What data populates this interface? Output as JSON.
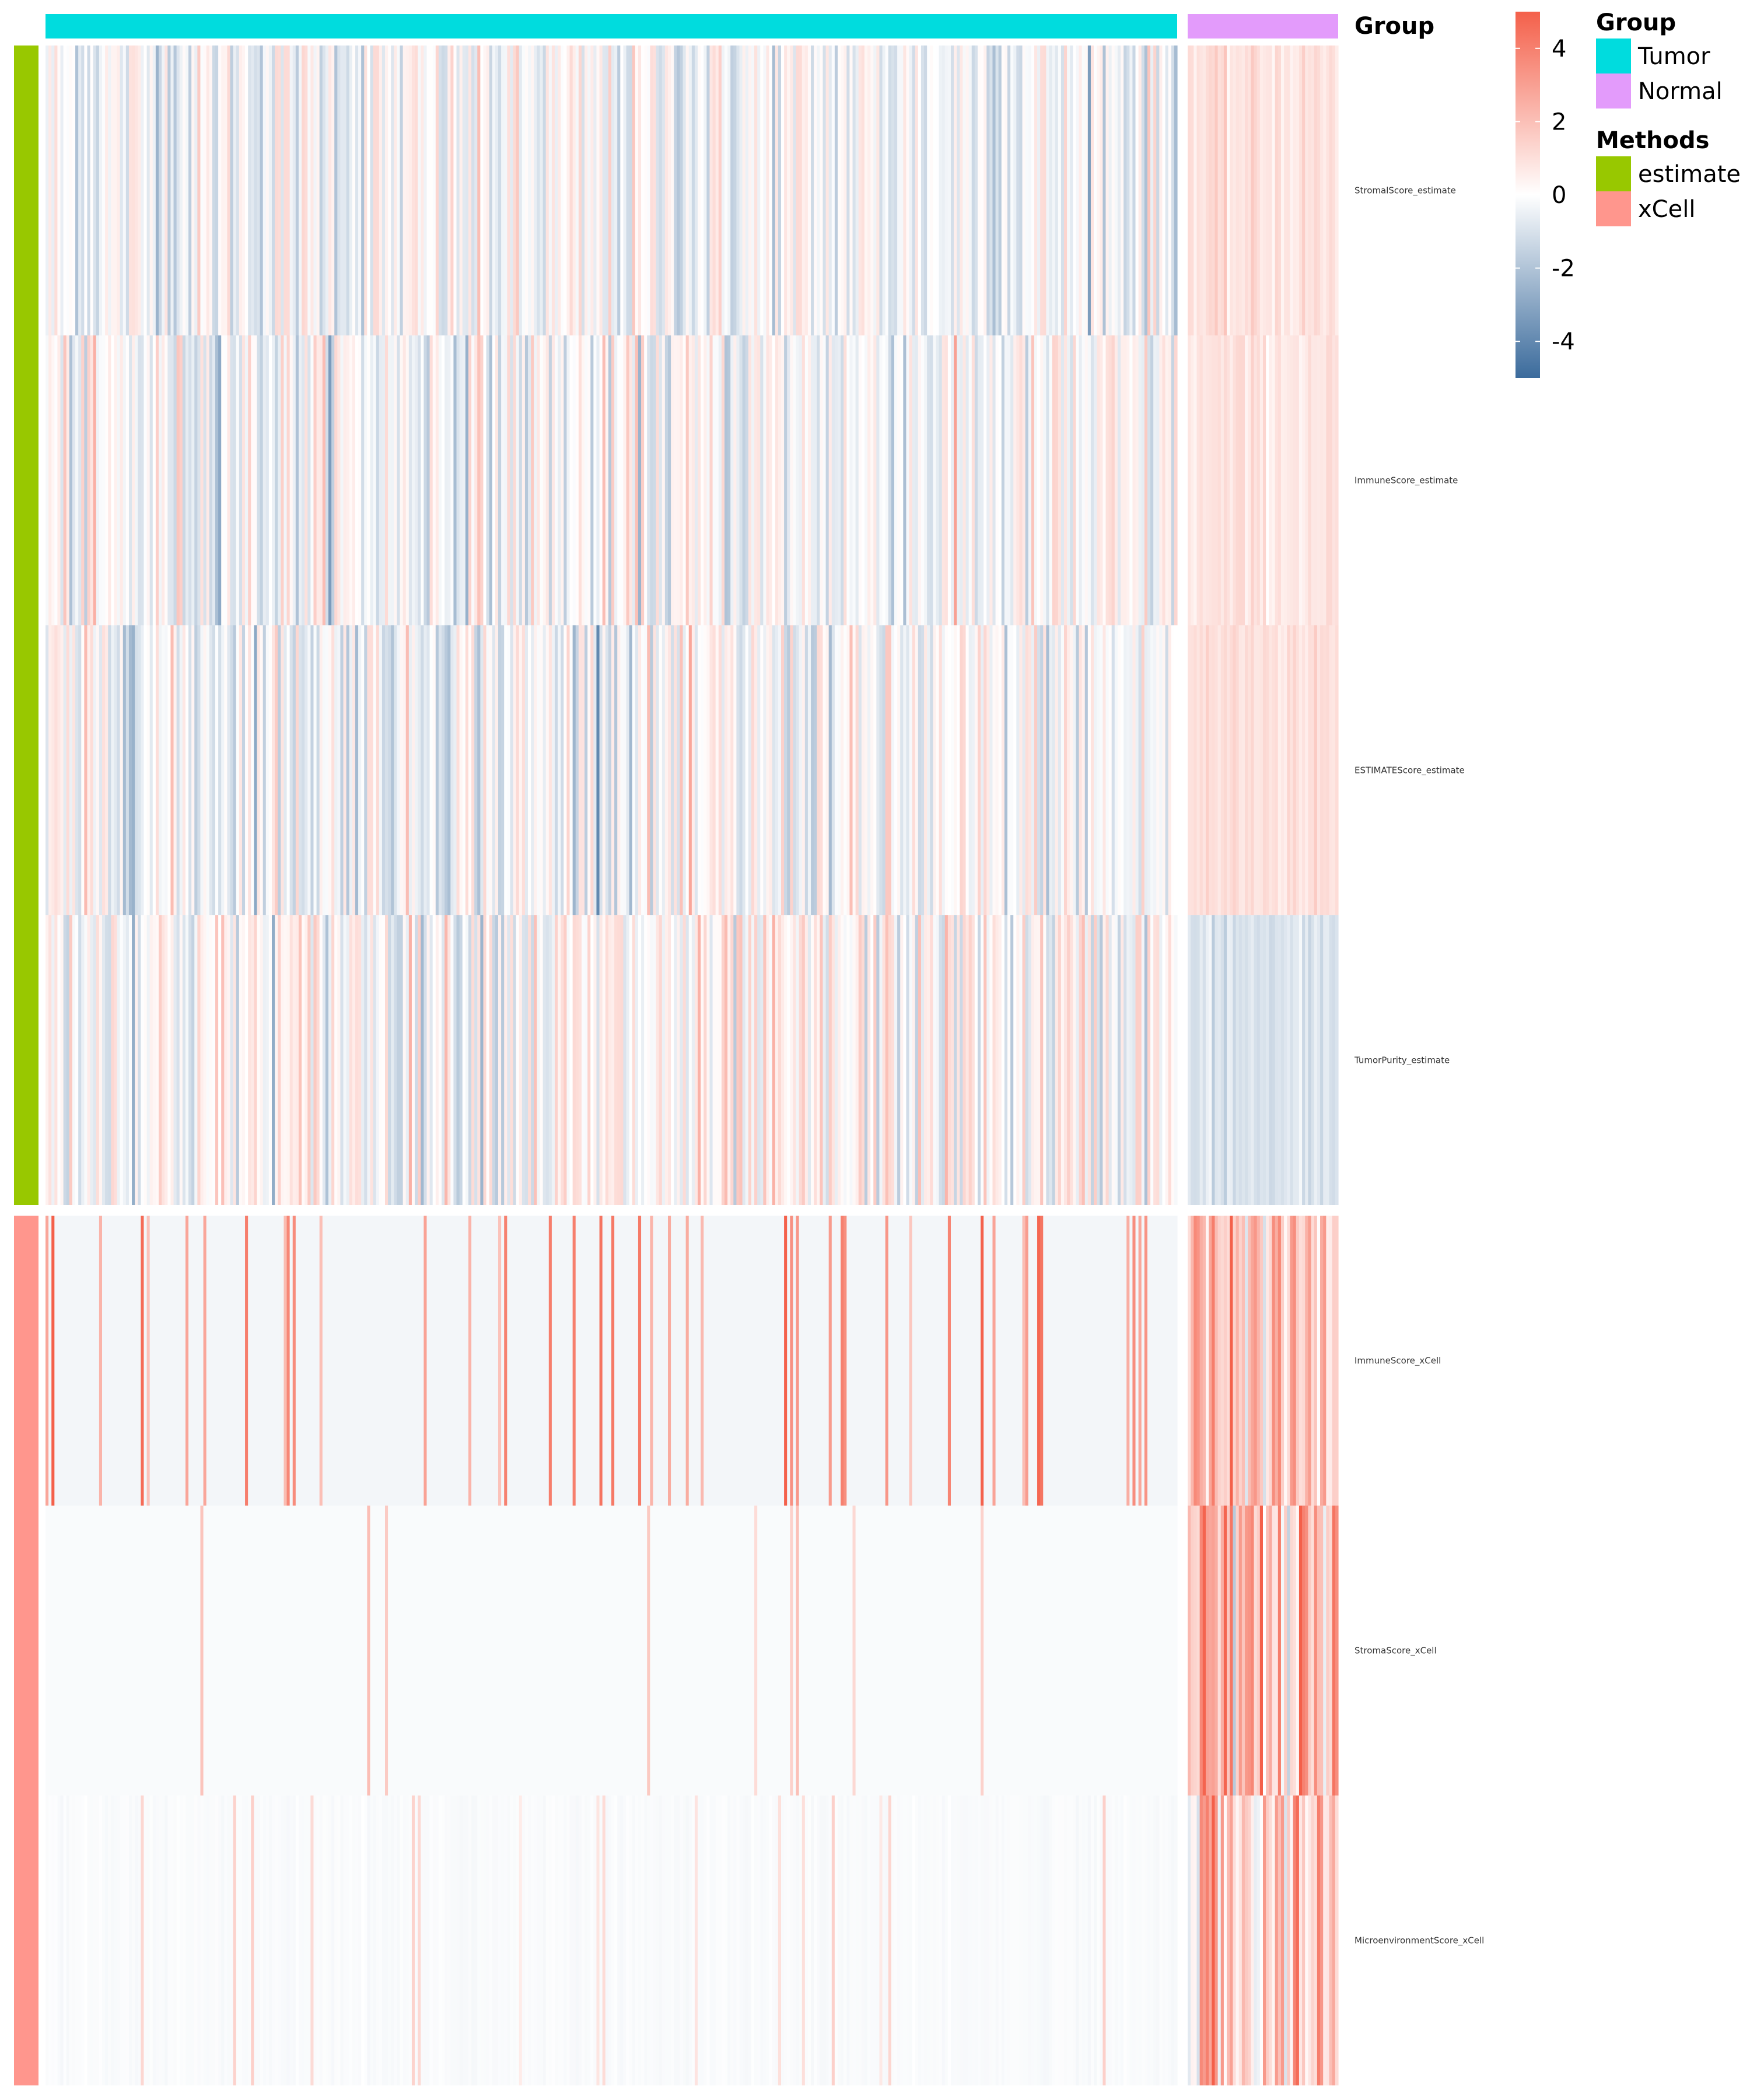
{
  "chart_data": {
    "type": "heatmap",
    "title": "",
    "row_labels": [
      "StromalScore_estimate",
      "ImmuneScore_estimate",
      "ESTIMATEScore_estimate",
      "TumorPurity_estimate",
      "ImmuneScore_xCell",
      "StromaScore_xCell",
      "MicroenvironmentScore_xCell"
    ],
    "row_groups": [
      "estimate",
      "estimate",
      "estimate",
      "estimate",
      "xCell",
      "xCell",
      "xCell"
    ],
    "column_groups": [
      {
        "name": "Tumor",
        "n": 380
      },
      {
        "name": "Normal",
        "n": 50
      }
    ],
    "top_annotation_label": "Group",
    "colorbar": {
      "range": [
        -5,
        5
      ],
      "ticks": [
        "4",
        "2",
        "0",
        "-2",
        "-4"
      ],
      "tick_values": [
        4,
        2,
        0,
        -2,
        -4
      ],
      "colors": {
        "low": "#3b6b9c",
        "mid": "#ffffff",
        "high": "#f4604a"
      }
    },
    "legends": [
      {
        "title": "Group",
        "items": [
          {
            "label": "Tumor",
            "color": "#00dcde"
          },
          {
            "label": "Normal",
            "color": "#e39bfb"
          }
        ]
      },
      {
        "title": "Methods",
        "items": [
          {
            "label": "estimate",
            "color": "#98c800"
          },
          {
            "label": "xCell",
            "color": "#ff968d"
          }
        ]
      }
    ],
    "row_profiles": [
      {
        "row": "StromalScore_estimate",
        "tumor_mean": -0.2,
        "tumor_sd": 0.9,
        "normal_mean": 0.9,
        "normal_sd": 0.35
      },
      {
        "row": "ImmuneScore_estimate",
        "tumor_mean": -0.15,
        "tumor_sd": 0.95,
        "normal_mean": 0.8,
        "normal_sd": 0.3
      },
      {
        "row": "ESTIMATEScore_estimate",
        "tumor_mean": -0.2,
        "tumor_sd": 0.95,
        "normal_mean": 1.0,
        "normal_sd": 0.3
      },
      {
        "row": "TumorPurity_estimate",
        "tumor_mean": 0.1,
        "tumor_sd": 1.0,
        "normal_mean": -1.0,
        "normal_sd": 0.35
      },
      {
        "row": "ImmuneScore_xCell",
        "tumor_mean": -0.3,
        "tumor_sd": 0.0,
        "normal_mean": 1.8,
        "normal_sd": 1.2,
        "tumor_spike_rate": 0.1,
        "tumor_spike_value": 3.5
      },
      {
        "row": "StromaScore_xCell",
        "tumor_mean": -0.15,
        "tumor_sd": 0.0,
        "normal_mean": 1.5,
        "normal_sd": 1.5,
        "tumor_spike_rate": 0.02,
        "tumor_spike_value": 1.5
      },
      {
        "row": "MicroenvironmentScore_xCell",
        "tumor_mean": -0.15,
        "tumor_sd": 0.05,
        "normal_mean": 1.5,
        "normal_sd": 1.5,
        "tumor_spike_rate": 0.04,
        "tumor_spike_value": 1.0
      }
    ]
  }
}
